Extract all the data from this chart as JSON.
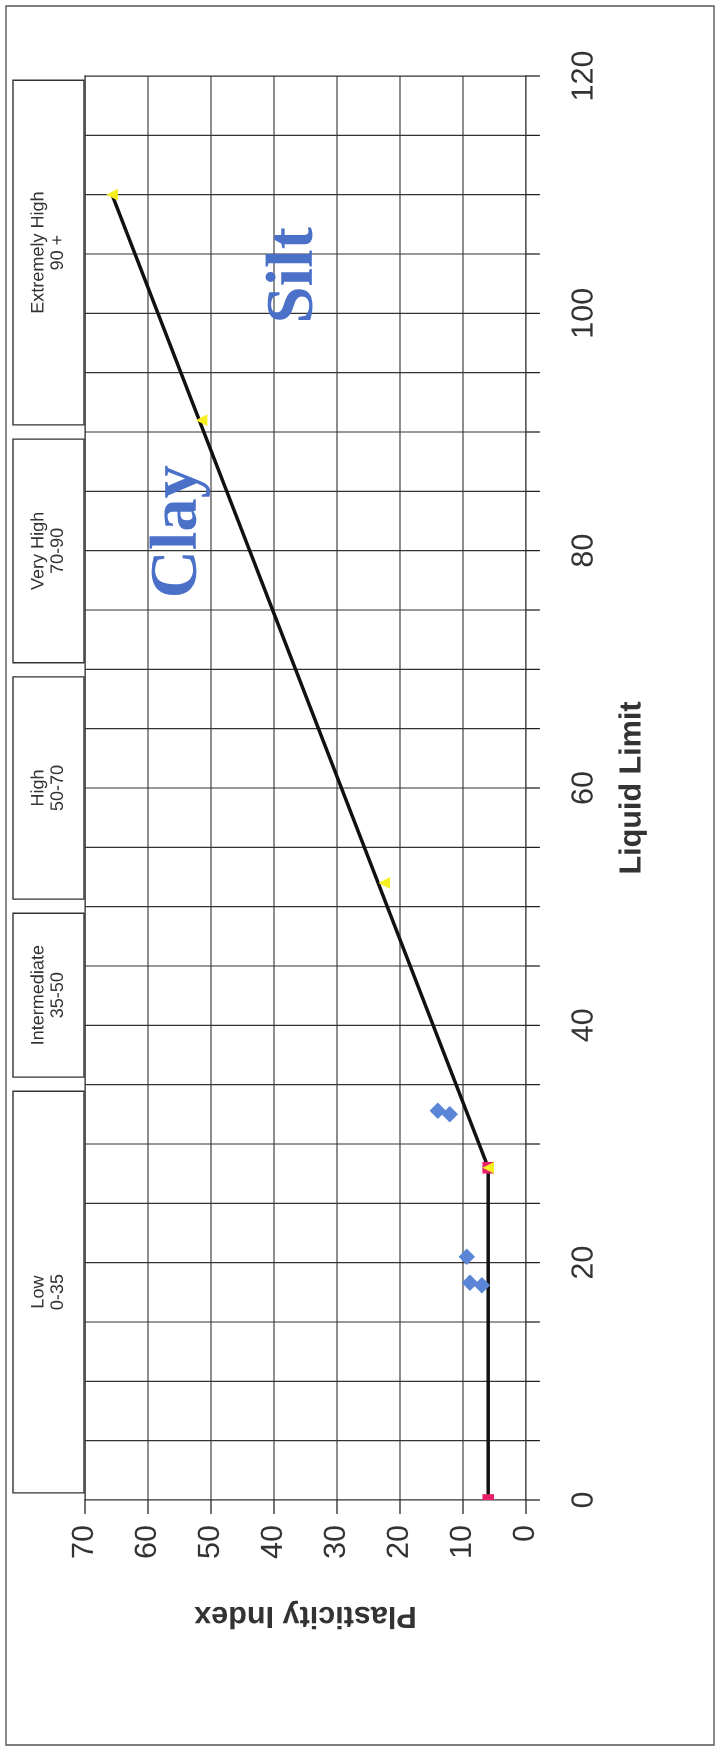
{
  "chart_data": {
    "type": "scatter",
    "xlabel": "Plasticity Index",
    "ylabel": "Liquid Limit",
    "xlim": [
      70,
      0
    ],
    "ylim": [
      0,
      120
    ],
    "xticks": [
      0,
      10,
      20,
      30,
      40,
      50,
      60,
      70
    ],
    "yticks": [
      0,
      {
        "value": 5,
        "label": null
      },
      {
        "value": 10,
        "label": null
      },
      {
        "value": 15,
        "label": null
      },
      20,
      {
        "value": 25,
        "label": null
      },
      {
        "value": 30,
        "label": null
      },
      {
        "value": 35,
        "label": null
      },
      40,
      {
        "value": 45,
        "label": null
      },
      {
        "value": 50,
        "label": null
      },
      {
        "value": 55,
        "label": null
      },
      60,
      {
        "value": 65,
        "label": null
      },
      {
        "value": 70,
        "label": null
      },
      {
        "value": 75,
        "label": null
      },
      80,
      {
        "value": 85,
        "label": null
      },
      {
        "value": 90,
        "label": null
      },
      {
        "value": 95,
        "label": null
      },
      100,
      {
        "value": 105,
        "label": null
      },
      {
        "value": 110,
        "label": null
      },
      {
        "value": 115,
        "label": null
      },
      120
    ],
    "grid": true,
    "series": [
      {
        "type": "line",
        "color": "#111111",
        "marker": "none",
        "line_style": "solid",
        "x": [
          6,
          6,
          65.7
        ],
        "values": [
          0,
          28,
          110
        ]
      },
      {
        "color": "#e8206a",
        "marker": "square",
        "x": [
          6,
          6
        ],
        "values": [
          0,
          28
        ]
      },
      {
        "color": "#f5ee20",
        "marker": "triangle",
        "x": [
          6,
          22.5,
          51.5,
          65.7
        ],
        "values": [
          28,
          52,
          91,
          110
        ]
      },
      {
        "color": "#5b85d6",
        "marker": "diamond",
        "x": [
          14,
          12.1,
          9.4,
          8.9,
          7
        ],
        "values": [
          32.8,
          32.5,
          20.5,
          18.3,
          18.1
        ]
      }
    ],
    "annotations": [
      "Low\n0-35",
      "Intermediate\n35-50",
      "High\n50-70",
      "Very High\n70-90",
      "Extremely High\n90 +",
      "Clay",
      "Silt"
    ]
  }
}
